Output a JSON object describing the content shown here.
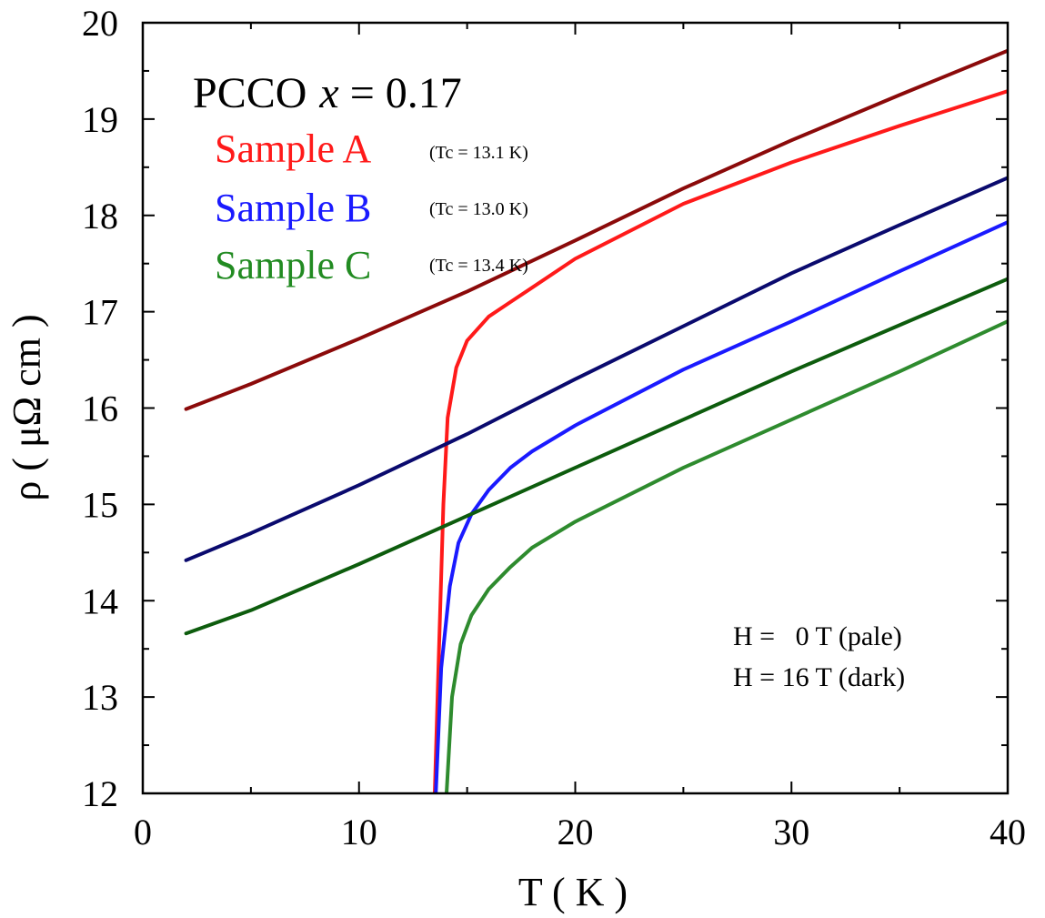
{
  "chart_data": {
    "type": "line",
    "xlabel": "T ( K )",
    "ylabel": "ρ ( μΩ cm )",
    "xlim": [
      0,
      40
    ],
    "ylim": [
      12,
      20
    ],
    "x_ticks": [
      0,
      10,
      20,
      30,
      40
    ],
    "y_ticks": [
      12,
      13,
      14,
      15,
      16,
      17,
      18,
      19,
      20
    ],
    "grid": false,
    "legend": {
      "title_text": "PCCO",
      "title_var": "x",
      "title_eq": "= 0.17",
      "placement": "top-left",
      "entries": [
        {
          "label": "Sample A",
          "tc": "(Tc = 13.1 K)",
          "color": "#ff1a1a"
        },
        {
          "label": "Sample B",
          "tc": "(Tc = 13.0 K)",
          "color": "#1a1aff"
        },
        {
          "label": "Sample C",
          "tc": "(Tc = 13.4 K)",
          "color": "#228b22"
        }
      ]
    },
    "annotation": [
      "H =   0 T (pale)",
      "H = 16 T (dark)"
    ],
    "series": [
      {
        "color": "#8b0a0a",
        "points": [
          [
            2,
            15.99
          ],
          [
            5,
            16.25
          ],
          [
            10,
            16.72
          ],
          [
            15,
            17.21
          ],
          [
            20,
            17.74
          ],
          [
            25,
            18.28
          ],
          [
            30,
            18.78
          ],
          [
            35,
            19.25
          ],
          [
            40,
            19.71
          ]
        ]
      },
      {
        "color": "#ff1a1a",
        "points": [
          [
            13.5,
            12.0
          ],
          [
            13.7,
            13.5
          ],
          [
            13.9,
            15.0
          ],
          [
            14.1,
            15.9
          ],
          [
            14.5,
            16.42
          ],
          [
            15,
            16.7
          ],
          [
            16,
            16.95
          ],
          [
            17,
            17.1
          ],
          [
            18,
            17.25
          ],
          [
            20,
            17.55
          ],
          [
            25,
            18.12
          ],
          [
            30,
            18.55
          ],
          [
            35,
            18.93
          ],
          [
            40,
            19.29
          ]
        ]
      },
      {
        "color": "#0a0a6e",
        "points": [
          [
            2,
            14.42
          ],
          [
            5,
            14.7
          ],
          [
            10,
            15.2
          ],
          [
            15,
            15.73
          ],
          [
            20,
            16.3
          ],
          [
            25,
            16.85
          ],
          [
            30,
            17.4
          ],
          [
            35,
            17.9
          ],
          [
            40,
            18.39
          ]
        ]
      },
      {
        "color": "#1a1aff",
        "points": [
          [
            13.55,
            12.0
          ],
          [
            13.8,
            13.3
          ],
          [
            14.2,
            14.15
          ],
          [
            14.6,
            14.6
          ],
          [
            15.2,
            14.9
          ],
          [
            16,
            15.15
          ],
          [
            17,
            15.38
          ],
          [
            18,
            15.55
          ],
          [
            20,
            15.82
          ],
          [
            25,
            16.4
          ],
          [
            30,
            16.9
          ],
          [
            35,
            17.42
          ],
          [
            40,
            17.93
          ]
        ]
      },
      {
        "color": "#0d5c0d",
        "points": [
          [
            2,
            13.66
          ],
          [
            5,
            13.9
          ],
          [
            10,
            14.38
          ],
          [
            15,
            14.88
          ],
          [
            20,
            15.38
          ],
          [
            25,
            15.88
          ],
          [
            30,
            16.38
          ],
          [
            35,
            16.86
          ],
          [
            40,
            17.34
          ]
        ]
      },
      {
        "color": "#2e8b2e",
        "points": [
          [
            14.05,
            12.0
          ],
          [
            14.3,
            13.0
          ],
          [
            14.7,
            13.55
          ],
          [
            15.2,
            13.85
          ],
          [
            16,
            14.12
          ],
          [
            17,
            14.35
          ],
          [
            18,
            14.55
          ],
          [
            20,
            14.82
          ],
          [
            25,
            15.38
          ],
          [
            30,
            15.88
          ],
          [
            35,
            16.38
          ],
          [
            40,
            16.9
          ]
        ]
      }
    ]
  }
}
